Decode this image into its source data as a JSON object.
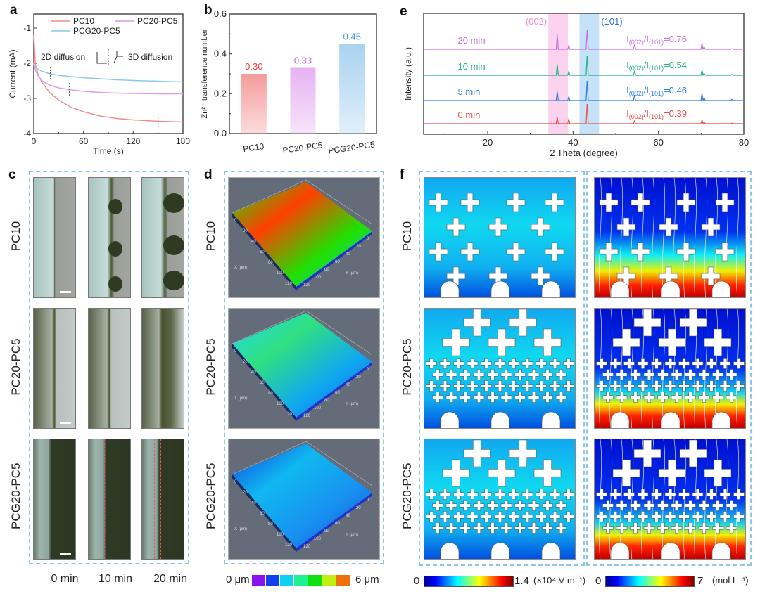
{
  "panels": {
    "a": "a",
    "b": "b",
    "c": "c",
    "d": "d",
    "e": "e",
    "f": "f"
  },
  "chart_data": [
    {
      "id": "a",
      "type": "line",
      "title": "",
      "xlabel": "Time (s)",
      "ylabel": "Current (mA)",
      "xlim": [
        0,
        180
      ],
      "ylim": [
        -4,
        -0.6
      ],
      "xticks": [
        0,
        60,
        120,
        180
      ],
      "yticks": [
        -4,
        -3,
        -2,
        -1
      ],
      "legend": "top",
      "annotation": {
        "left": "2D diffusion",
        "right": "3D diffusion"
      },
      "series": [
        {
          "name": "PC10",
          "color": "#f58a8a",
          "x": [
            0,
            2,
            5,
            10,
            20,
            30,
            45,
            60,
            80,
            100,
            120,
            150,
            180
          ],
          "y": [
            -1.2,
            -2.05,
            -2.3,
            -2.55,
            -2.85,
            -3.05,
            -3.25,
            -3.38,
            -3.5,
            -3.57,
            -3.61,
            -3.65,
            -3.67
          ],
          "marker_x": 150
        },
        {
          "name": "PC20-PC5",
          "color": "#dc9ae8",
          "x": [
            0,
            2,
            5,
            10,
            20,
            30,
            45,
            60,
            80,
            100,
            120,
            150,
            180
          ],
          "y": [
            -2.0,
            -2.2,
            -2.35,
            -2.5,
            -2.63,
            -2.7,
            -2.76,
            -2.8,
            -2.83,
            -2.85,
            -2.86,
            -2.87,
            -2.87
          ],
          "marker_x": 43
        },
        {
          "name": "PCG20-PC5",
          "color": "#8ec8e6",
          "x": [
            0,
            2,
            5,
            10,
            20,
            30,
            45,
            60,
            80,
            100,
            120,
            150,
            180
          ],
          "y": [
            -2.05,
            -2.12,
            -2.17,
            -2.23,
            -2.3,
            -2.34,
            -2.38,
            -2.41,
            -2.44,
            -2.47,
            -2.49,
            -2.51,
            -2.53
          ],
          "marker_x": 20
        }
      ]
    },
    {
      "id": "b",
      "type": "bar",
      "title": "",
      "xlabel": "",
      "ylabel": "Zn²⁺ transference number",
      "ylim": [
        0,
        0.6
      ],
      "yticks": [
        "0.0",
        "0.2",
        "0.4",
        "0.6"
      ],
      "categories": [
        "PC10",
        "PC20-PC5",
        "PCG20-PC5"
      ],
      "values": [
        0.3,
        0.33,
        0.45
      ],
      "labels": [
        "0.30",
        "0.33",
        "0.45"
      ],
      "colors": [
        "#f59b9b",
        "#e6b2f2",
        "#a9d3f0"
      ],
      "label_colors": [
        "#f03a3a",
        "#c962e6",
        "#3a9ad8"
      ]
    },
    {
      "id": "e",
      "type": "line",
      "title": "",
      "xlabel": "2 Theta (degree)",
      "ylabel": "Intensity (a.u.)",
      "xlim": [
        5,
        80
      ],
      "xticks": [
        20,
        40,
        60,
        80
      ],
      "bands": [
        {
          "label": "(002)",
          "from": 34.2,
          "to": 38.8,
          "color": "#fbd3ee",
          "label_color": "#f08ad0"
        },
        {
          "label": "(101)",
          "from": 41.5,
          "to": 46.1,
          "color": "#c5e2f8",
          "label_color": "#2f6fd6"
        }
      ],
      "peaks": [
        36.3,
        39.0,
        43.3,
        54.4,
        70.2,
        70.7,
        77.2
      ],
      "series": [
        {
          "name": "0 min",
          "color": "#ef4b4b",
          "ratio": "0.39",
          "peak_heights": [
            0.35,
            0.25,
            1.0,
            0.15,
            0.2,
            0.1,
            0.03
          ]
        },
        {
          "name": "5 min",
          "color": "#2f7de0",
          "ratio": "0.46",
          "peak_heights": [
            0.45,
            0.2,
            1.0,
            0.28,
            0.35,
            0.15,
            0.06
          ]
        },
        {
          "name": "10 min",
          "color": "#22b27a",
          "ratio": "0.54",
          "peak_heights": [
            0.55,
            0.2,
            1.0,
            0.2,
            0.25,
            0.1,
            0.04
          ]
        },
        {
          "name": "20 min",
          "color": "#c86fe0",
          "ratio": "0.76",
          "peak_heights": [
            0.75,
            0.2,
            1.0,
            0.25,
            0.3,
            0.12,
            0.03
          ]
        }
      ],
      "ratio_prefix": "I(002)/I(101)="
    }
  ],
  "panel_c": {
    "rows": [
      "PC10",
      "PC20-PC5",
      "PCG20-PC5"
    ],
    "cols": [
      "0 min",
      "10 min",
      "20 min"
    ]
  },
  "panel_d": {
    "rows": [
      "PC10",
      "PC20-PC5",
      "PCG20-PC5"
    ],
    "axis_x": "X (μm)",
    "axis_y": "Y (μm)",
    "ticks": [
      "0",
      "20",
      "40",
      "60",
      "80",
      "100",
      "120"
    ],
    "colorbar": {
      "min_label": "0 μm",
      "max_label": "6 μm",
      "colors": [
        "#8b10f0",
        "#1040f0",
        "#10d0f0",
        "#20f090",
        "#10e010",
        "#c0f010",
        "#f07010"
      ]
    }
  },
  "panel_f": {
    "rows": [
      "PC10",
      "PC20-PC5",
      "PCG20-PC5"
    ],
    "colorbar_left": {
      "min": "0",
      "max": "1.4",
      "unit": "(×10⁴ V m⁻¹)"
    },
    "colorbar_right": {
      "min": "0",
      "max": "7",
      "unit": "(mol L⁻¹)"
    }
  }
}
